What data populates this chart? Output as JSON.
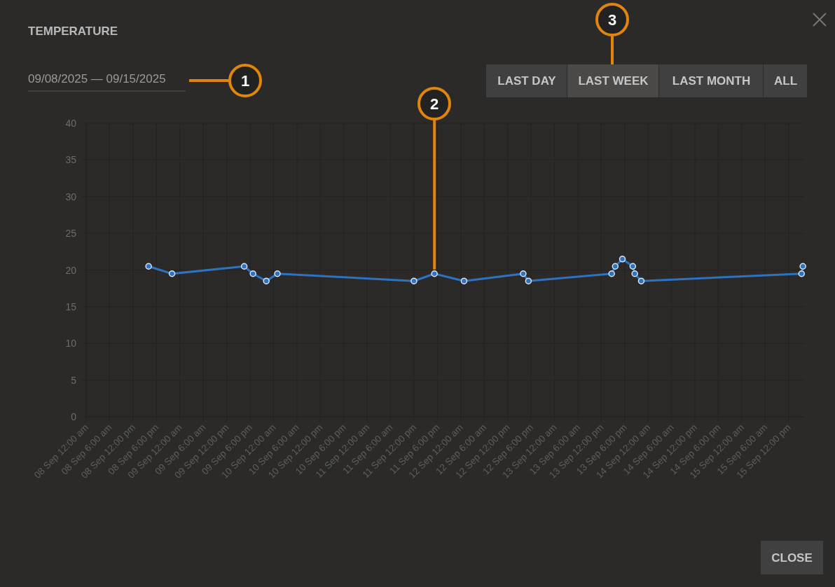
{
  "chart_data": {
    "type": "line",
    "title": "TEMPERATURE",
    "x": [
      "2025-09-08T16:00",
      "2025-09-08T22:00",
      "2025-09-09T16:30",
      "2025-09-09T18:45",
      "2025-09-09T22:10",
      "2025-09-10T01:00",
      "2025-09-11T12:00",
      "2025-09-11T17:15",
      "2025-09-12T00:50",
      "2025-09-12T16:00",
      "2025-09-12T17:20",
      "2025-09-13T14:40",
      "2025-09-13T15:35",
      "2025-09-13T17:25",
      "2025-09-13T20:05",
      "2025-09-13T20:35",
      "2025-09-13T22:15",
      "2025-09-15T15:20",
      "2025-09-15T15:40"
    ],
    "series": [
      {
        "color": "#2e72c0",
        "values": [
          20.5,
          19.5,
          20.5,
          19.5,
          18.5,
          19.5,
          18.5,
          19.5,
          18.5,
          19.5,
          18.5,
          19.5,
          20.5,
          21.5,
          20.5,
          19.5,
          18.5,
          19.5,
          20.5
        ]
      }
    ],
    "xlim": [
      "2025-09-08T00:00",
      "2025-09-15T16:00"
    ],
    "xticks": [
      {
        "value": "2025-09-08T00:00",
        "label": "08 Sep 12:00 am"
      },
      {
        "value": "2025-09-08T06:00",
        "label": "08 Sep 6:00 am"
      },
      {
        "value": "2025-09-08T12:00",
        "label": "08 Sep 12:00 pm"
      },
      {
        "value": "2025-09-08T18:00",
        "label": "08 Sep 6:00 pm"
      },
      {
        "value": "2025-09-09T00:00",
        "label": "09 Sep 12:00 am"
      },
      {
        "value": "2025-09-09T06:00",
        "label": "09 Sep 6:00 am"
      },
      {
        "value": "2025-09-09T12:00",
        "label": "09 Sep 12:00 pm"
      },
      {
        "value": "2025-09-09T18:00",
        "label": "09 Sep 6:00 pm"
      },
      {
        "value": "2025-09-10T00:00",
        "label": "10 Sep 12:00 am"
      },
      {
        "value": "2025-09-10T06:00",
        "label": "10 Sep 6:00 am"
      },
      {
        "value": "2025-09-10T12:00",
        "label": "10 Sep 12:00 pm"
      },
      {
        "value": "2025-09-10T18:00",
        "label": "10 Sep 6:00 pm"
      },
      {
        "value": "2025-09-11T00:00",
        "label": "11 Sep 12:00 am"
      },
      {
        "value": "2025-09-11T06:00",
        "label": "11 Sep 6:00 am"
      },
      {
        "value": "2025-09-11T12:00",
        "label": "11 Sep 12:00 pm"
      },
      {
        "value": "2025-09-11T18:00",
        "label": "11 Sep 6:00 pm"
      },
      {
        "value": "2025-09-12T00:00",
        "label": "12 Sep 12:00 am"
      },
      {
        "value": "2025-09-12T06:00",
        "label": "12 Sep 6:00 am"
      },
      {
        "value": "2025-09-12T12:00",
        "label": "12 Sep 12:00 pm"
      },
      {
        "value": "2025-09-12T18:00",
        "label": "12 Sep 6:00 pm"
      },
      {
        "value": "2025-09-13T00:00",
        "label": "13 Sep 12:00 am"
      },
      {
        "value": "2025-09-13T06:00",
        "label": "13 Sep 6:00 am"
      },
      {
        "value": "2025-09-13T12:00",
        "label": "13 Sep 12:00 pm"
      },
      {
        "value": "2025-09-13T18:00",
        "label": "13 Sep 6:00 pm"
      },
      {
        "value": "2025-09-14T00:00",
        "label": "14 Sep 12:00 am"
      },
      {
        "value": "2025-09-14T06:00",
        "label": "14 Sep 6:00 am"
      },
      {
        "value": "2025-09-14T12:00",
        "label": "14 Sep 12:00 pm"
      },
      {
        "value": "2025-09-14T18:00",
        "label": "14 Sep 6:00 pm"
      },
      {
        "value": "2025-09-15T00:00",
        "label": "15 Sep 12:00 am"
      },
      {
        "value": "2025-09-15T06:00",
        "label": "15 Sep 6:00 am"
      },
      {
        "value": "2025-09-15T12:00",
        "label": "15 Sep 12:00 pm"
      }
    ],
    "ylim": [
      0,
      40
    ],
    "yticks": [
      0,
      5,
      10,
      15,
      20,
      25,
      30,
      35,
      40
    ],
    "grid": true,
    "marker": "circle",
    "line_style": "solid",
    "annotations": [
      "09/08/2025 — 09/15/2025",
      "LAST DAY",
      "LAST WEEK",
      "LAST MONTH",
      "ALL",
      "CLOSE",
      "1",
      {
        "text": "2",
        "x": "2025-09-11T17:15",
        "y": 19.5
      },
      "3"
    ]
  }
}
